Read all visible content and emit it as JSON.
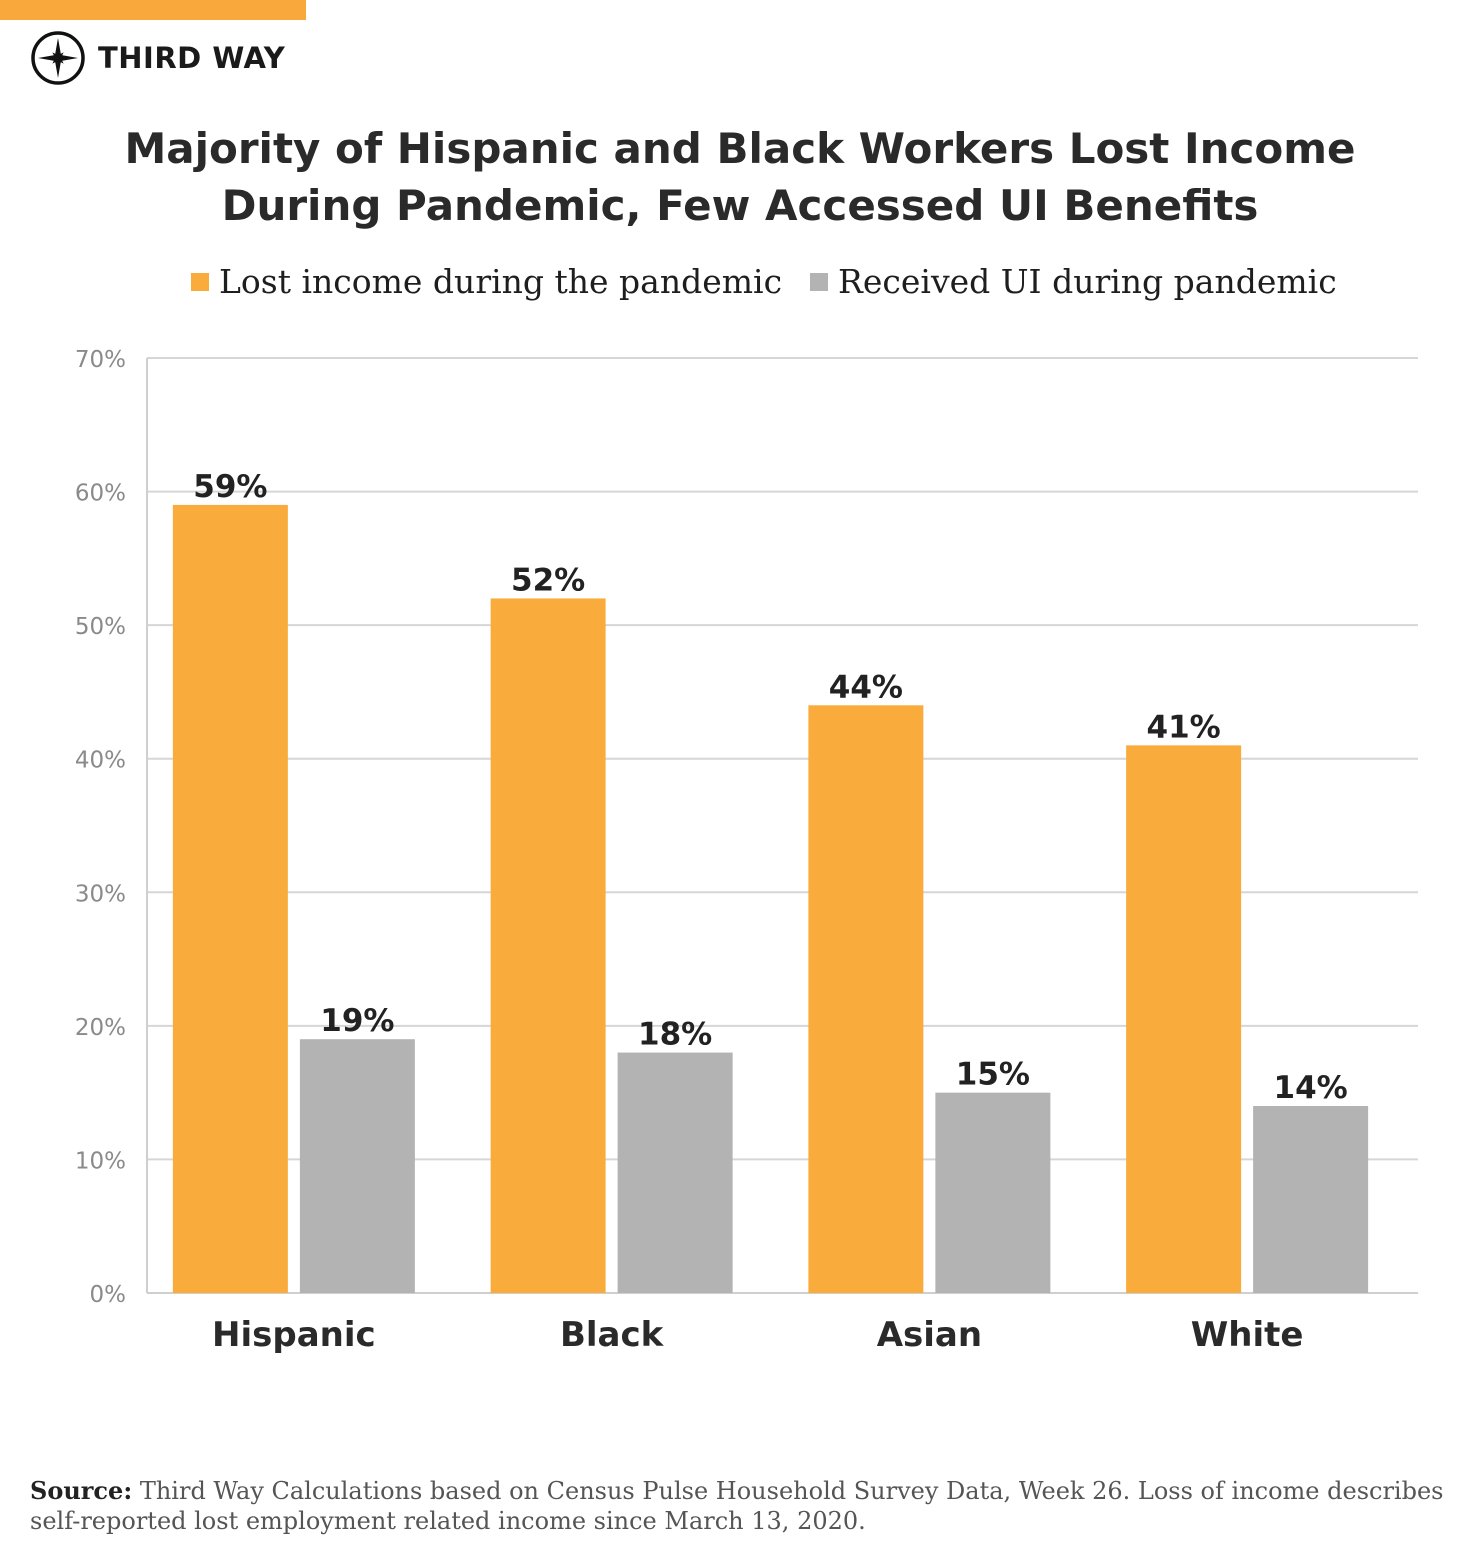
{
  "brand": {
    "name": "THIRD WAY",
    "accent_color": "#f9a83c",
    "icon": "compass-icon"
  },
  "chart_data": {
    "type": "bar",
    "title_lines": [
      "Majority of Hispanic and Black Workers Lost Income",
      "During Pandemic, Few Accessed UI Benefits"
    ],
    "categories": [
      "Hispanic",
      "Black",
      "Asian",
      "White"
    ],
    "series": [
      {
        "name": "Lost income during the pandemic",
        "color": "#f9ac3c",
        "values": [
          59,
          52,
          44,
          41
        ],
        "labels": [
          "59%",
          "52%",
          "44%",
          "41%"
        ]
      },
      {
        "name": "Received UI during pandemic",
        "color": "#b3b3b3",
        "values": [
          19,
          18,
          15,
          14
        ],
        "labels": [
          "19%",
          "18%",
          "15%",
          "14%"
        ]
      }
    ],
    "ylim": [
      0,
      70
    ],
    "yticks": [
      0,
      10,
      20,
      30,
      40,
      50,
      60,
      70
    ],
    "ytick_labels": [
      "0%",
      "10%",
      "20%",
      "30%",
      "40%",
      "50%",
      "60%",
      "70%"
    ],
    "grid": true,
    "legend_position": "top-center",
    "xlabel": "",
    "ylabel": ""
  },
  "source": {
    "label": "Source:",
    "text": "Third Way Calculations based on Census Pulse Household Survey Data, Week 26. Loss of income describes self-reported lost employment related income since March 13, 2020."
  }
}
